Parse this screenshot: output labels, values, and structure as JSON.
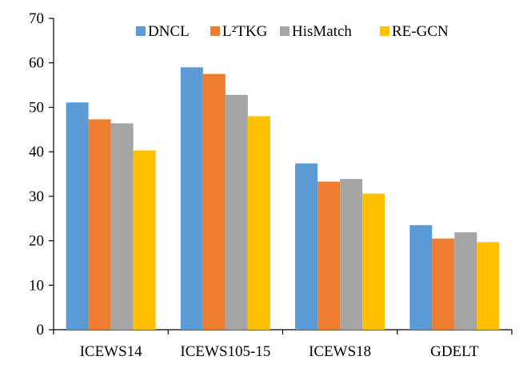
{
  "chart_data": {
    "type": "bar",
    "title": "",
    "xlabel": "",
    "ylabel": "",
    "ylim": [
      0,
      70
    ],
    "yticks": [
      0,
      10,
      20,
      30,
      40,
      50,
      60,
      70
    ],
    "grid": false,
    "legend_position": "top",
    "categories": [
      "ICEWS14",
      "ICEWS105-15",
      "ICEWS18",
      "GDELT"
    ],
    "series": [
      {
        "name": "DNCL",
        "color": "#5B9BD5",
        "values": [
          51.1,
          59.0,
          37.4,
          23.5
        ]
      },
      {
        "name": "L²TKG",
        "color": "#ED7D31",
        "values": [
          47.3,
          57.5,
          33.3,
          20.5
        ]
      },
      {
        "name": "HisMatch",
        "color": "#A5A5A5",
        "values": [
          46.4,
          52.8,
          33.9,
          21.9
        ]
      },
      {
        "name": "RE-GCN",
        "color": "#FFC000",
        "values": [
          40.3,
          48.0,
          30.6,
          19.7
        ]
      }
    ]
  }
}
